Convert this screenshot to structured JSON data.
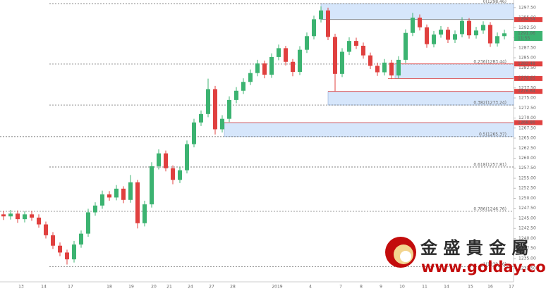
{
  "chart_data": {
    "type": "candlestick",
    "up_color": "#3cb371",
    "down_color": "#e0403f",
    "ylim": [
      1229.2,
      1299.4
    ],
    "yticks": [
      {
        "value": 1297.5,
        "label": "1297.50"
      },
      {
        "value": 1295,
        "label": "1295.00"
      },
      {
        "value": 1292.5,
        "label": "1292.50"
      },
      {
        "value": 1290,
        "label": "1290.00"
      },
      {
        "value": 1287.5,
        "label": "1287.50"
      },
      {
        "value": 1285,
        "label": "1285.00"
      },
      {
        "value": 1282.5,
        "label": "1282.50"
      },
      {
        "value": 1280,
        "label": "1280.00"
      },
      {
        "value": 1277.5,
        "label": "1277.50"
      },
      {
        "value": 1275,
        "label": "1275.00"
      },
      {
        "value": 1272.5,
        "label": "1272.50"
      },
      {
        "value": 1270,
        "label": "1270.00"
      },
      {
        "value": 1267.5,
        "label": "1267.50"
      },
      {
        "value": 1265,
        "label": "1265.00"
      },
      {
        "value": 1262.5,
        "label": "1262.50"
      },
      {
        "value": 1260,
        "label": "1260.00"
      },
      {
        "value": 1257.5,
        "label": "1257.50"
      },
      {
        "value": 1255,
        "label": "1255.00"
      },
      {
        "value": 1252.5,
        "label": "1252.50"
      },
      {
        "value": 1250,
        "label": "1250.00"
      },
      {
        "value": 1247.5,
        "label": "1247.50"
      },
      {
        "value": 1245,
        "label": "1245.00"
      },
      {
        "value": 1242.5,
        "label": "1242.50"
      },
      {
        "value": 1240,
        "label": "1240.00"
      },
      {
        "value": 1237.5,
        "label": "1237.50"
      },
      {
        "value": 1235,
        "label": "1235.00"
      },
      {
        "value": 1232.5,
        "label": "1232.50"
      }
    ],
    "x_labels": [
      "13",
      "14",
      "17",
      "18",
      "19",
      "20",
      "21",
      "24",
      "27",
      "28",
      "2019",
      "4",
      "7",
      "8",
      "9",
      "10",
      "11",
      "14",
      "15",
      "16",
      "17"
    ],
    "open": [
      1246.0,
      1245.5,
      1246.2,
      1244.8,
      1246.0,
      1245.2,
      1243.5,
      1240.8,
      1238.2,
      1236.5,
      1234.8,
      1238.5,
      1241.2,
      1246.5,
      1248.2,
      1251.0,
      1250.2,
      1252.4,
      1249.6,
      1254.0,
      1243.8,
      1248.5,
      1258.0,
      1261.2,
      1257.5,
      1254.6,
      1257.0,
      1263.5,
      1268.9,
      1271.0,
      1277.2,
      1267.2,
      1269.8,
      1274.5,
      1276.8,
      1279.0,
      1281.2,
      1283.6,
      1280.8,
      1285.2,
      1287.4,
      1284.0,
      1281.5,
      1287.0,
      1290.4,
      1294.6,
      1296.8,
      1290.2,
      1281.0,
      1286.5,
      1289.2,
      1288.0,
      1285.6,
      1283.0,
      1281.4,
      1283.8,
      1280.6,
      1284.5,
      1291.2,
      1295.0,
      1292.6,
      1288.4,
      1290.8,
      1292.0,
      1289.5,
      1290.9,
      1294.2,
      1290.6,
      1291.8,
      1293.2,
      1288.6,
      1290.4
    ],
    "high": [
      1246.9,
      1247.1,
      1247.0,
      1246.8,
      1246.9,
      1246.0,
      1244.2,
      1241.6,
      1239.0,
      1237.2,
      1239.4,
      1242.0,
      1247.4,
      1249.0,
      1251.9,
      1251.8,
      1253.3,
      1253.0,
      1255.8,
      1254.6,
      1249.4,
      1259.0,
      1262.2,
      1261.9,
      1258.2,
      1257.9,
      1264.4,
      1269.8,
      1271.9,
      1279.8,
      1278.0,
      1270.7,
      1275.4,
      1277.7,
      1279.9,
      1282.1,
      1284.5,
      1284.3,
      1286.1,
      1288.3,
      1288.0,
      1284.7,
      1287.9,
      1291.3,
      1295.5,
      1297.8,
      1297.5,
      1291.0,
      1287.4,
      1290.1,
      1290.0,
      1288.8,
      1286.3,
      1283.8,
      1284.7,
      1284.5,
      1285.4,
      1292.1,
      1296.2,
      1295.8,
      1293.3,
      1291.7,
      1292.9,
      1292.7,
      1291.8,
      1295.1,
      1294.9,
      1292.7,
      1294.1,
      1293.9,
      1291.3,
      1292.0
    ],
    "low": [
      1244.6,
      1244.7,
      1243.9,
      1244.0,
      1244.4,
      1242.7,
      1240.0,
      1237.4,
      1235.6,
      1233.5,
      1234.0,
      1237.7,
      1240.4,
      1245.7,
      1247.4,
      1249.4,
      1249.5,
      1248.8,
      1248.9,
      1242.5,
      1243.0,
      1247.7,
      1257.2,
      1256.7,
      1253.5,
      1253.8,
      1256.2,
      1262.7,
      1268.0,
      1270.2,
      1265.9,
      1266.4,
      1269.0,
      1273.7,
      1276.0,
      1278.2,
      1280.4,
      1279.9,
      1280.0,
      1284.4,
      1283.1,
      1280.4,
      1280.7,
      1286.2,
      1289.6,
      1293.8,
      1289.4,
      1276.6,
      1280.2,
      1285.7,
      1287.2,
      1284.8,
      1282.2,
      1280.5,
      1280.6,
      1279.7,
      1279.8,
      1283.7,
      1290.4,
      1291.8,
      1287.5,
      1287.6,
      1290.0,
      1288.7,
      1288.7,
      1290.1,
      1289.8,
      1289.8,
      1291.0,
      1287.7,
      1287.8,
      1289.6
    ],
    "close": [
      1245.5,
      1246.2,
      1244.8,
      1246.0,
      1245.2,
      1243.5,
      1240.8,
      1238.2,
      1236.5,
      1234.8,
      1238.5,
      1241.2,
      1246.5,
      1248.2,
      1251.0,
      1250.2,
      1252.4,
      1249.6,
      1254.0,
      1243.8,
      1248.5,
      1258.0,
      1261.2,
      1257.5,
      1254.6,
      1257.0,
      1263.5,
      1268.9,
      1271.0,
      1277.2,
      1267.2,
      1269.8,
      1274.5,
      1276.8,
      1279.0,
      1281.2,
      1283.6,
      1280.8,
      1285.2,
      1287.4,
      1284.0,
      1281.5,
      1287.0,
      1290.4,
      1294.6,
      1296.8,
      1290.2,
      1281.0,
      1286.5,
      1289.2,
      1288.0,
      1285.6,
      1283.0,
      1281.4,
      1283.8,
      1280.6,
      1284.5,
      1291.2,
      1295.0,
      1292.6,
      1288.4,
      1290.8,
      1292.0,
      1289.5,
      1290.9,
      1294.2,
      1290.6,
      1291.8,
      1293.2,
      1288.6,
      1290.4,
      1291.1
    ],
    "fib_levels": [
      {
        "label": "0(1298.46)",
        "value": 1298.46
      },
      {
        "label": "0.236(1283.44)",
        "value": 1283.44
      },
      {
        "label": "0.382(1273.24)",
        "value": 1273.24
      },
      {
        "label": "0.5(1265.37)",
        "value": 1265.37
      },
      {
        "label": "0.618(1257.81)",
        "value": 1257.81
      },
      {
        "label": "0.786(1246.76)",
        "value": 1246.76
      },
      {
        "label": "1(1232.96)",
        "value": 1232.96
      }
    ],
    "zones": [
      {
        "top": 1298.46,
        "bottom": 1294.54
      },
      {
        "top": 1283.48,
        "bottom": 1279.85
      },
      {
        "top": 1276.64,
        "bottom": 1273.24
      },
      {
        "top": 1268.86,
        "bottom": 1265.37
      }
    ],
    "zone_color": "#d6e6fb",
    "price_tags": [
      {
        "value": 1294.54,
        "color": "#e0403f"
      },
      {
        "value": 1291.06,
        "color": "#3cb371",
        "time": "11:55"
      },
      {
        "value": 1283.48,
        "color": "#e0403f"
      },
      {
        "value": 1279.85,
        "color": "#e0403f"
      },
      {
        "value": 1276.64,
        "color": "#e0403f"
      },
      {
        "value": 1268.86,
        "color": "#e0403f"
      }
    ]
  },
  "watermark": {
    "name": "金 盛 貴 金 屬",
    "url": "www.golday.com"
  }
}
